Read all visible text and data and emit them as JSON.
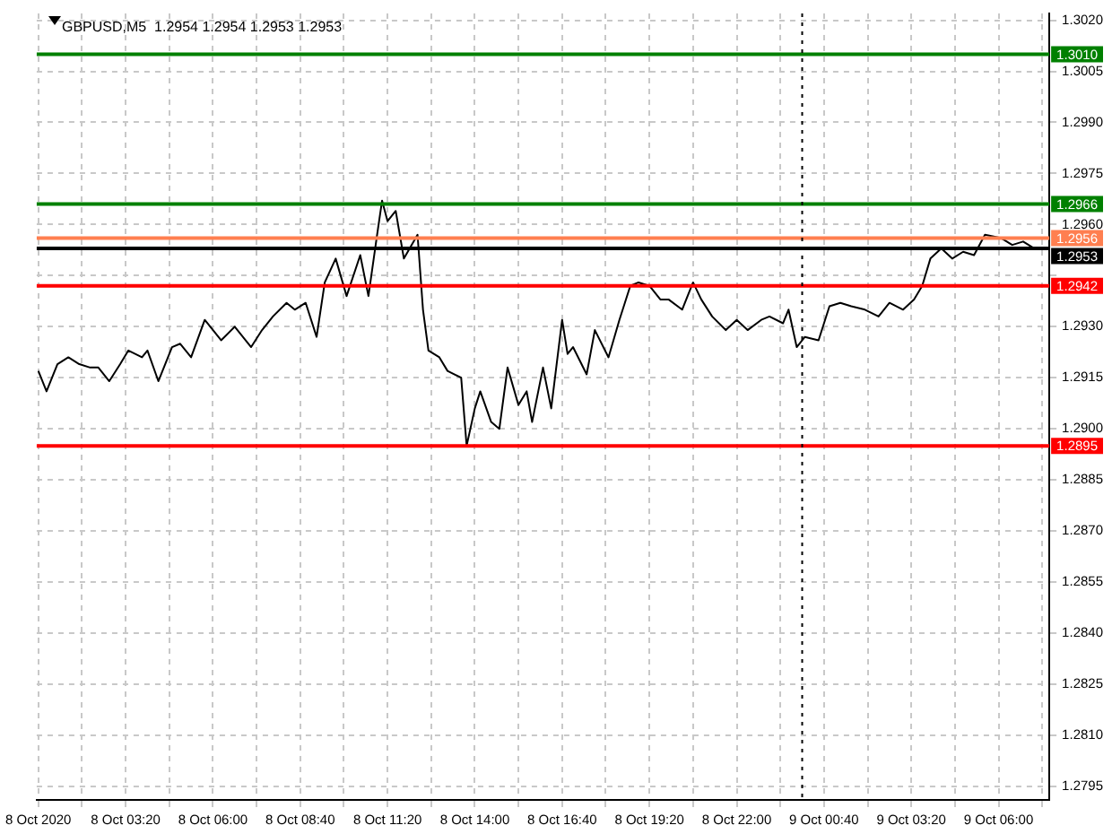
{
  "chart_data": {
    "type": "line",
    "title": "GBPUSD,M5  1.2954 1.2954 1.2953 1.2953",
    "x": [
      "2020-10-08T00:40",
      "2020-10-08T00:55",
      "2020-10-08T01:15",
      "2020-10-08T01:35",
      "2020-10-08T01:55",
      "2020-10-08T02:15",
      "2020-10-08T02:30",
      "2020-10-08T02:50",
      "2020-10-08T03:10",
      "2020-10-08T03:25",
      "2020-10-08T03:50",
      "2020-10-08T04:00",
      "2020-10-08T04:20",
      "2020-10-08T04:45",
      "2020-10-08T05:00",
      "2020-10-08T05:20",
      "2020-10-08T05:45",
      "2020-10-08T06:15",
      "2020-10-08T06:40",
      "2020-10-08T07:10",
      "2020-10-08T07:30",
      "2020-10-08T07:50",
      "2020-10-08T08:15",
      "2020-10-08T08:30",
      "2020-10-08T08:50",
      "2020-10-08T09:10",
      "2020-10-08T09:25",
      "2020-10-08T09:45",
      "2020-10-08T10:05",
      "2020-10-08T10:30",
      "2020-10-08T10:45",
      "2020-10-08T11:00",
      "2020-10-08T11:10",
      "2020-10-08T11:20",
      "2020-10-08T11:35",
      "2020-10-08T11:50",
      "2020-10-08T12:15",
      "2020-10-08T12:25",
      "2020-10-08T12:35",
      "2020-10-08T12:55",
      "2020-10-08T13:10",
      "2020-10-08T13:35",
      "2020-10-08T13:45",
      "2020-10-08T14:00",
      "2020-10-08T14:10",
      "2020-10-08T14:30",
      "2020-10-08T14:45",
      "2020-10-08T15:00",
      "2020-10-08T15:20",
      "2020-10-08T15:35",
      "2020-10-08T15:45",
      "2020-10-08T16:05",
      "2020-10-08T16:20",
      "2020-10-08T16:40",
      "2020-10-08T16:50",
      "2020-10-08T17:00",
      "2020-10-08T17:25",
      "2020-10-08T17:40",
      "2020-10-08T18:05",
      "2020-10-08T18:25",
      "2020-10-08T18:45",
      "2020-10-08T19:00",
      "2020-10-08T19:20",
      "2020-10-08T19:40",
      "2020-10-08T19:55",
      "2020-10-08T20:20",
      "2020-10-08T20:40",
      "2020-10-08T20:55",
      "2020-10-08T21:15",
      "2020-10-08T21:40",
      "2020-10-08T22:00",
      "2020-10-08T22:20",
      "2020-10-08T22:45",
      "2020-10-08T23:00",
      "2020-10-08T23:25",
      "2020-10-08T23:35",
      "2020-10-08T23:50",
      "2020-10-09T00:05",
      "2020-10-09T00:30",
      "2020-10-09T00:50",
      "2020-10-09T01:10",
      "2020-10-09T01:30",
      "2020-10-09T01:55",
      "2020-10-09T02:20",
      "2020-10-09T02:40",
      "2020-10-09T03:05",
      "2020-10-09T03:25",
      "2020-10-09T03:40",
      "2020-10-09T03:55",
      "2020-10-09T04:15",
      "2020-10-09T04:35",
      "2020-10-09T04:55",
      "2020-10-09T05:15",
      "2020-10-09T05:35",
      "2020-10-09T06:05",
      "2020-10-09T06:25",
      "2020-10-09T06:45",
      "2020-10-09T07:05"
    ],
    "series": [
      {
        "color": "#000000",
        "values": [
          1.2917,
          1.2911,
          1.2919,
          1.2921,
          1.2919,
          1.2918,
          1.2918,
          1.2914,
          1.2919,
          1.2923,
          1.2921,
          1.2923,
          1.2914,
          1.2924,
          1.2925,
          1.2921,
          1.2932,
          1.2926,
          1.293,
          1.2924,
          1.2929,
          1.2933,
          1.2937,
          1.2935,
          1.2937,
          1.2927,
          1.2943,
          1.295,
          1.2939,
          1.2951,
          1.2939,
          1.2956,
          1.2967,
          1.2961,
          1.2964,
          1.295,
          1.2957,
          1.2935,
          1.2923,
          1.2921,
          1.2917,
          1.2915,
          1.2895,
          1.2906,
          1.2911,
          1.2902,
          1.29,
          1.2918,
          1.2907,
          1.2911,
          1.2902,
          1.2918,
          1.2906,
          1.2932,
          1.2922,
          1.2924,
          1.2916,
          1.2929,
          1.2921,
          1.2932,
          1.2942,
          1.2943,
          1.2942,
          1.2938,
          1.2938,
          1.2935,
          1.2943,
          1.2938,
          1.2933,
          1.2929,
          1.2932,
          1.2929,
          1.2932,
          1.2933,
          1.2931,
          1.2935,
          1.2924,
          1.2927,
          1.2926,
          1.2936,
          1.2937,
          1.2936,
          1.2935,
          1.2933,
          1.2937,
          1.2935,
          1.2938,
          1.2942,
          1.295,
          1.2953,
          1.295,
          1.2952,
          1.2951,
          1.2957,
          1.2956,
          1.2954,
          1.2955,
          1.2953
        ]
      }
    ],
    "xlim": [
      "2020-10-08T00:37",
      "2020-10-09T07:33"
    ],
    "xticks": [
      {
        "value": "2020-10-08T00:40",
        "label": "8 Oct 2020"
      },
      {
        "value": "2020-10-08T02:00",
        "label": null
      },
      {
        "value": "2020-10-08T03:20",
        "label": "8 Oct 03:20"
      },
      {
        "value": "2020-10-08T04:40",
        "label": null
      },
      {
        "value": "2020-10-08T06:00",
        "label": "8 Oct 06:00"
      },
      {
        "value": "2020-10-08T07:20",
        "label": null
      },
      {
        "value": "2020-10-08T08:40",
        "label": "8 Oct 08:40"
      },
      {
        "value": "2020-10-08T10:00",
        "label": null
      },
      {
        "value": "2020-10-08T11:20",
        "label": "8 Oct 11:20"
      },
      {
        "value": "2020-10-08T12:40",
        "label": null
      },
      {
        "value": "2020-10-08T14:00",
        "label": "8 Oct 14:00"
      },
      {
        "value": "2020-10-08T15:20",
        "label": null
      },
      {
        "value": "2020-10-08T16:40",
        "label": "8 Oct 16:40"
      },
      {
        "value": "2020-10-08T18:00",
        "label": null
      },
      {
        "value": "2020-10-08T19:20",
        "label": "8 Oct 19:20"
      },
      {
        "value": "2020-10-08T20:40",
        "label": null
      },
      {
        "value": "2020-10-08T22:00",
        "label": "8 Oct 22:00"
      },
      {
        "value": "2020-10-08T23:20",
        "label": null
      },
      {
        "value": "2020-10-09T00:40",
        "label": "9 Oct 00:40"
      },
      {
        "value": "2020-10-09T02:00",
        "label": null
      },
      {
        "value": "2020-10-09T03:20",
        "label": "9 Oct 03:20"
      },
      {
        "value": "2020-10-09T04:40",
        "label": null
      },
      {
        "value": "2020-10-09T06:00",
        "label": "9 Oct 06:00"
      },
      {
        "value": "2020-10-09T07:20",
        "label": null
      }
    ],
    "ylim": [
      1.2791,
      1.3022
    ],
    "yticks": [
      {
        "value": 1.2795,
        "label": "1.2795"
      },
      {
        "value": 1.281,
        "label": "1.2810"
      },
      {
        "value": 1.2825,
        "label": "1.2825"
      },
      {
        "value": 1.284,
        "label": "1.2840"
      },
      {
        "value": 1.2855,
        "label": "1.2855"
      },
      {
        "value": 1.287,
        "label": "1.2870"
      },
      {
        "value": 1.2885,
        "label": "1.2885"
      },
      {
        "value": 1.29,
        "label": "1.2900"
      },
      {
        "value": 1.2915,
        "label": "1.2915"
      },
      {
        "value": 1.293,
        "label": "1.2930"
      },
      {
        "value": 1.2945,
        "label": null
      },
      {
        "value": 1.296,
        "label": "1.2960"
      },
      {
        "value": 1.2975,
        "label": "1.2975"
      },
      {
        "value": 1.299,
        "label": "1.2990"
      },
      {
        "value": 1.3005,
        "label": "1.3005"
      },
      {
        "value": 1.302,
        "label": "1.3020"
      }
    ],
    "grid": true,
    "marker": "none",
    "line_style": "solid",
    "ref_lines": [
      {
        "axis": "y",
        "value": 1.301,
        "label": "1.3010",
        "color": "#008000"
      },
      {
        "axis": "y",
        "value": 1.2966,
        "label": "1.2966",
        "color": "#008000"
      },
      {
        "axis": "y",
        "value": 1.2956,
        "label": "1.2956",
        "color": "#ff7f50"
      },
      {
        "axis": "y",
        "value": 1.2953,
        "label": "1.2953",
        "color": "#000000"
      },
      {
        "axis": "y",
        "value": 1.2942,
        "label": "1.2942",
        "color": "#ff0000"
      },
      {
        "axis": "y",
        "value": 1.2895,
        "label": "1.2895",
        "color": "#ff0000"
      },
      {
        "axis": "x",
        "value": "2020-10-09T00:00",
        "color": "#000000",
        "line_style": "dotted"
      }
    ]
  }
}
